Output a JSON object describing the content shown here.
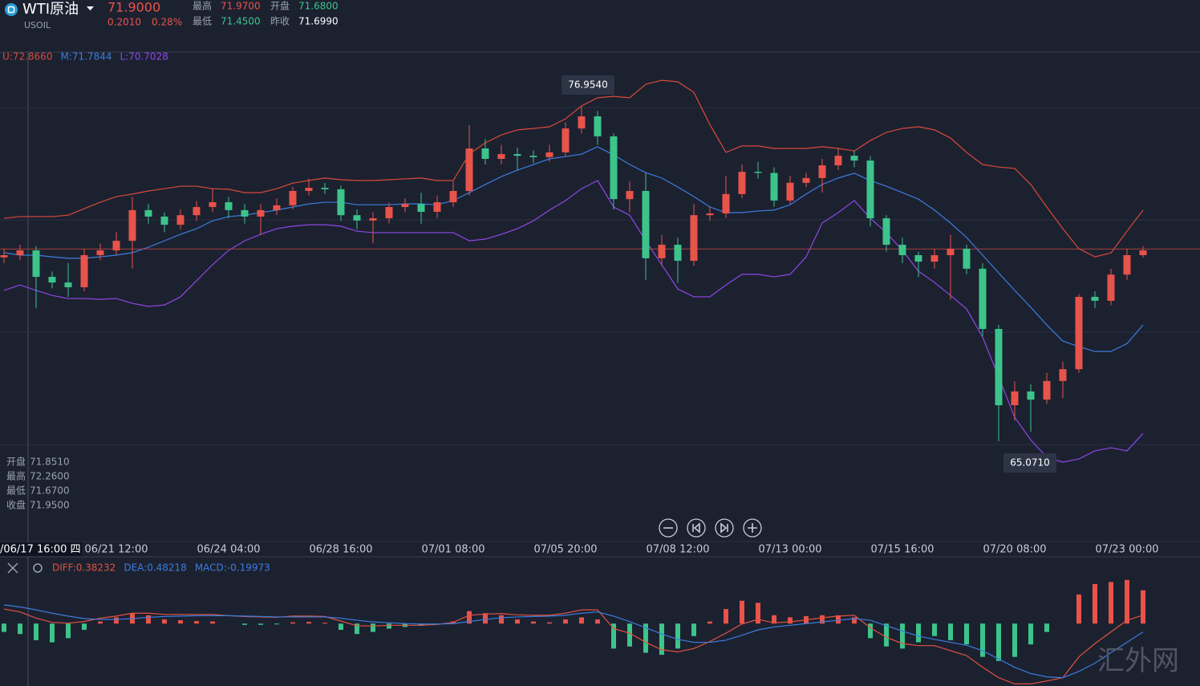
{
  "header": {
    "symbol": "WTI原油",
    "code": "USOIL",
    "price": "71.9000",
    "change": "0.2010",
    "change_pct": "0.28%",
    "stats": [
      {
        "label": "最高",
        "value": "71.9700"
      },
      {
        "label": "开盘",
        "value": "71.6800"
      },
      {
        "label": "最低",
        "value": "71.4500"
      },
      {
        "label": "昨收",
        "value": "71.6990"
      }
    ]
  },
  "watermark": "汇外网",
  "chart_data": [
    {
      "type": "candlestick",
      "up_color": "#e8534a",
      "down_color": "#3cc48b",
      "ylim": [
        61.65,
        78.89
      ],
      "ygrid": [
        64.95,
        68.94,
        72.93,
        76.92
      ],
      "last_price": 71.9,
      "crosshair_label": "/06/17 16:00 四",
      "categories": [
        null,
        null,
        null,
        null,
        null,
        null,
        null,
        "06/21 12:00",
        null,
        null,
        null,
        null,
        null,
        null,
        "06/24 04:00",
        null,
        null,
        null,
        null,
        null,
        null,
        "06/28 16:00",
        null,
        null,
        null,
        null,
        null,
        null,
        "07/01 08:00",
        null,
        null,
        null,
        null,
        null,
        null,
        "07/05 20:00",
        null,
        null,
        null,
        null,
        null,
        null,
        "07/08 12:00",
        null,
        null,
        null,
        null,
        null,
        null,
        "07/13 00:00",
        null,
        null,
        null,
        null,
        null,
        null,
        "07/15 16:00",
        null,
        null,
        null,
        null,
        null,
        null,
        "07/20 08:00",
        null,
        null,
        null,
        null,
        null,
        null,
        "07/23 00:00",
        null
      ],
      "open": [
        71.6,
        71.68,
        71.85,
        70.91,
        70.71,
        70.54,
        71.68,
        71.85,
        72.19,
        73.28,
        73.05,
        72.76,
        73.1,
        73.39,
        73.56,
        73.28,
        73.05,
        73.28,
        73.45,
        73.96,
        74.07,
        74.02,
        73.1,
        72.91,
        72.99,
        73.39,
        73.5,
        73.22,
        73.56,
        73.96,
        75.47,
        75.1,
        75.27,
        75.21,
        75.16,
        75.33,
        76.18,
        76.61,
        75.9,
        73.67,
        73.96,
        71.57,
        72.05,
        71.48,
        73.1,
        73.16,
        73.85,
        74.64,
        74.6,
        73.62,
        74.25,
        74.42,
        74.87,
        75.21,
        75.04,
        72.99,
        72.05,
        71.68,
        71.45,
        71.68,
        71.91,
        71.2,
        69.06,
        66.35,
        66.84,
        66.55,
        67.21,
        67.63,
        70.2,
        70.06,
        70.99,
        71.68
      ],
      "high": [
        71.9,
        72.05,
        72.0,
        71.1,
        71.4,
        71.9,
        72.1,
        72.5,
        73.75,
        73.5,
        73.2,
        73.3,
        73.6,
        74.05,
        73.75,
        73.5,
        73.5,
        73.7,
        74.1,
        74.4,
        74.25,
        74.15,
        73.3,
        73.2,
        73.55,
        73.7,
        73.9,
        73.8,
        74.3,
        76.3,
        75.8,
        75.6,
        75.5,
        75.4,
        75.6,
        76.4,
        76.954,
        76.8,
        76.0,
        74.3,
        74.6,
        72.4,
        72.3,
        73.5,
        73.4,
        74.5,
        74.9,
        75.0,
        74.8,
        74.5,
        74.6,
        75.1,
        75.5,
        75.4,
        75.2,
        73.1,
        72.3,
        71.8,
        71.9,
        72.4,
        72.05,
        71.4,
        69.2,
        67.2,
        67.1,
        67.5,
        67.9,
        70.3,
        70.4,
        71.2,
        71.9,
        72.0
      ],
      "low": [
        71.4,
        71.5,
        69.8,
        70.5,
        70.2,
        70.4,
        71.5,
        71.7,
        71.2,
        72.8,
        72.5,
        72.6,
        72.9,
        73.2,
        73.0,
        72.8,
        72.4,
        73.1,
        73.3,
        73.8,
        73.85,
        72.9,
        72.6,
        72.1,
        72.8,
        73.2,
        72.8,
        73.0,
        73.4,
        73.8,
        74.9,
        74.9,
        74.7,
        74.95,
        75.0,
        75.2,
        76.0,
        75.6,
        73.3,
        73.2,
        70.8,
        71.3,
        70.7,
        71.3,
        72.9,
        73.0,
        73.7,
        74.4,
        73.4,
        73.5,
        74.1,
        73.9,
        74.7,
        74.8,
        72.7,
        71.8,
        71.4,
        70.9,
        71.2,
        70.1,
        71.0,
        68.8,
        65.071,
        65.8,
        65.4,
        66.4,
        66.6,
        67.5,
        69.8,
        69.9,
        70.8,
        71.6
      ],
      "close": [
        71.68,
        71.85,
        70.91,
        70.71,
        70.54,
        71.68,
        71.85,
        72.19,
        73.28,
        73.05,
        72.76,
        73.1,
        73.39,
        73.56,
        73.28,
        73.05,
        73.28,
        73.45,
        73.96,
        74.07,
        74.02,
        73.1,
        72.91,
        72.99,
        73.39,
        73.5,
        73.22,
        73.56,
        73.96,
        75.47,
        75.1,
        75.27,
        75.21,
        75.16,
        75.33,
        76.18,
        76.61,
        75.9,
        73.67,
        73.96,
        71.57,
        72.05,
        71.48,
        73.1,
        73.16,
        73.85,
        74.64,
        74.6,
        73.62,
        74.25,
        74.42,
        74.87,
        75.21,
        75.04,
        72.99,
        72.05,
        71.68,
        71.45,
        71.68,
        71.91,
        71.2,
        69.06,
        66.35,
        66.84,
        66.55,
        67.21,
        67.63,
        70.2,
        70.06,
        70.99,
        71.68,
        71.85
      ],
      "series": [
        {
          "label": "U:72.8660",
          "color": "#d9493a",
          "values": [
            72.99,
            73.05,
            73.05,
            73.05,
            73.1,
            73.33,
            73.56,
            73.76,
            73.85,
            73.96,
            74.04,
            74.13,
            74.13,
            74.04,
            74.02,
            73.9,
            73.9,
            74.04,
            74.24,
            74.33,
            74.42,
            74.36,
            74.33,
            74.33,
            74.36,
            74.39,
            74.42,
            74.33,
            74.33,
            75.27,
            75.67,
            75.95,
            76.13,
            76.18,
            76.24,
            76.52,
            76.98,
            77.27,
            77.32,
            77.27,
            77.75,
            77.89,
            77.84,
            77.46,
            76.32,
            75.33,
            75.56,
            75.56,
            75.47,
            75.47,
            75.47,
            75.53,
            75.47,
            75.38,
            75.75,
            76.04,
            76.18,
            76.24,
            76.13,
            75.84,
            75.33,
            74.9,
            74.81,
            74.76,
            74.19,
            73.39,
            72.62,
            71.91,
            71.62,
            71.76,
            72.53,
            73.28
          ]
        },
        {
          "label": "M:71.7844",
          "color": "#3b7ddd",
          "values": [
            71.77,
            71.68,
            71.68,
            71.62,
            71.57,
            71.57,
            71.62,
            71.68,
            71.77,
            71.96,
            72.19,
            72.42,
            72.62,
            72.9,
            73.05,
            73.1,
            73.19,
            73.28,
            73.39,
            73.5,
            73.56,
            73.56,
            73.47,
            73.47,
            73.47,
            73.5,
            73.5,
            73.47,
            73.62,
            73.9,
            74.19,
            74.47,
            74.7,
            74.9,
            75.1,
            75.18,
            75.27,
            75.53,
            75.24,
            74.9,
            74.61,
            74.42,
            74.1,
            73.76,
            73.39,
            73.19,
            73.19,
            73.25,
            73.28,
            73.47,
            73.85,
            74.19,
            74.42,
            74.59,
            74.33,
            74.13,
            73.9,
            73.67,
            73.28,
            72.82,
            72.31,
            71.68,
            71.05,
            70.43,
            69.83,
            69.2,
            68.63,
            68.43,
            68.26,
            68.26,
            68.54,
            69.2
          ]
        },
        {
          "label": "L:70.7028",
          "color": "#8e47e6",
          "values": [
            70.43,
            70.62,
            70.43,
            70.25,
            70.14,
            70.14,
            70.11,
            70.14,
            69.97,
            69.86,
            69.91,
            70.2,
            70.77,
            71.34,
            71.85,
            72.19,
            72.42,
            72.62,
            72.71,
            72.76,
            72.76,
            72.71,
            72.53,
            72.48,
            72.48,
            72.48,
            72.48,
            72.48,
            72.48,
            72.19,
            72.25,
            72.42,
            72.62,
            72.9,
            73.28,
            73.62,
            74.04,
            74.33,
            73.39,
            73.1,
            72.19,
            71.34,
            70.48,
            70.2,
            70.2,
            70.62,
            71.0,
            71.0,
            70.91,
            71.0,
            71.62,
            72.82,
            73.19,
            73.62,
            72.99,
            72.48,
            71.85,
            71.11,
            70.71,
            70.25,
            69.77,
            68.77,
            67.35,
            65.92,
            65.12,
            64.5,
            64.33,
            64.44,
            64.73,
            64.84,
            64.73,
            65.35
          ]
        }
      ],
      "annotations": [
        {
          "value": 76.954,
          "label": "76.9540"
        },
        {
          "value": 65.071,
          "label": "65.0710"
        }
      ],
      "ohlc_box": [
        {
          "label": "开盘",
          "value": "71.8510"
        },
        {
          "label": "最高",
          "value": "72.2600"
        },
        {
          "label": "最低",
          "value": "71.6700"
        },
        {
          "label": "收盘",
          "value": "71.9500"
        }
      ]
    },
    {
      "type": "macd",
      "ylim": [
        -1.5,
        1.2
      ],
      "up_color": "#e8534a",
      "down_color": "#3cc48b",
      "hist_label": "MACD:-0.19973",
      "hist_label_color": "#3b7ddd",
      "hist": [
        -0.2,
        -0.25,
        -0.4,
        -0.45,
        -0.35,
        -0.15,
        0.05,
        0.15,
        0.25,
        0.2,
        0.1,
        0.08,
        0.06,
        0.05,
        0.0,
        -0.03,
        -0.03,
        -0.02,
        0.03,
        0.04,
        0.02,
        -0.15,
        -0.25,
        -0.2,
        -0.12,
        -0.08,
        -0.05,
        -0.02,
        0.05,
        0.3,
        0.25,
        0.2,
        0.1,
        0.05,
        0.03,
        0.1,
        0.15,
        0.1,
        -0.6,
        -0.55,
        -0.7,
        -0.75,
        -0.6,
        -0.3,
        0.05,
        0.35,
        0.55,
        0.5,
        0.2,
        0.15,
        0.18,
        0.2,
        0.2,
        0.15,
        -0.35,
        -0.55,
        -0.6,
        -0.45,
        -0.3,
        -0.4,
        -0.5,
        -0.8,
        -0.9,
        -0.8,
        -0.5,
        -0.2,
        0.0,
        0.7,
        0.95,
        1.0,
        1.05,
        0.8
      ],
      "series": [
        {
          "label": "DIFF:0.38232",
          "color": "#e0523f",
          "values": [
            0.35,
            0.28,
            0.13,
            0.03,
            0.01,
            0.05,
            0.13,
            0.18,
            0.25,
            0.25,
            0.22,
            0.22,
            0.22,
            0.22,
            0.19,
            0.17,
            0.16,
            0.15,
            0.18,
            0.18,
            0.17,
            0.06,
            -0.05,
            -0.06,
            -0.04,
            -0.04,
            -0.04,
            -0.02,
            0.03,
            0.2,
            0.23,
            0.24,
            0.21,
            0.2,
            0.2,
            0.25,
            0.33,
            0.33,
            -0.12,
            -0.23,
            -0.45,
            -0.63,
            -0.68,
            -0.6,
            -0.43,
            -0.23,
            -0.01,
            0.1,
            0.02,
            0.04,
            0.09,
            0.14,
            0.18,
            0.2,
            -0.1,
            -0.33,
            -0.48,
            -0.53,
            -0.53,
            -0.65,
            -0.77,
            -1.05,
            -1.3,
            -1.45,
            -1.45,
            -1.38,
            -1.3,
            -0.8,
            -0.48,
            -0.2,
            0.08,
            0.2
          ]
        },
        {
          "label": "DEA:0.48218",
          "color": "#3b7ddd",
          "values": [
            0.45,
            0.4,
            0.33,
            0.25,
            0.18,
            0.12,
            0.1,
            0.1,
            0.12,
            0.15,
            0.17,
            0.18,
            0.19,
            0.19,
            0.19,
            0.18,
            0.17,
            0.16,
            0.16,
            0.16,
            0.16,
            0.13,
            0.08,
            0.04,
            0.02,
            0.0,
            -0.01,
            -0.01,
            0.0,
            0.05,
            0.1,
            0.14,
            0.16,
            0.17,
            0.18,
            0.2,
            0.25,
            0.28,
            0.18,
            0.05,
            -0.1,
            -0.25,
            -0.38,
            -0.45,
            -0.45,
            -0.4,
            -0.28,
            -0.15,
            -0.08,
            -0.04,
            0.0,
            0.04,
            0.08,
            0.12,
            0.08,
            -0.05,
            -0.18,
            -0.3,
            -0.38,
            -0.45,
            -0.52,
            -0.65,
            -0.85,
            -1.05,
            -1.2,
            -1.28,
            -1.3,
            -1.15,
            -0.95,
            -0.7,
            -0.45,
            -0.2
          ]
        }
      ]
    }
  ]
}
